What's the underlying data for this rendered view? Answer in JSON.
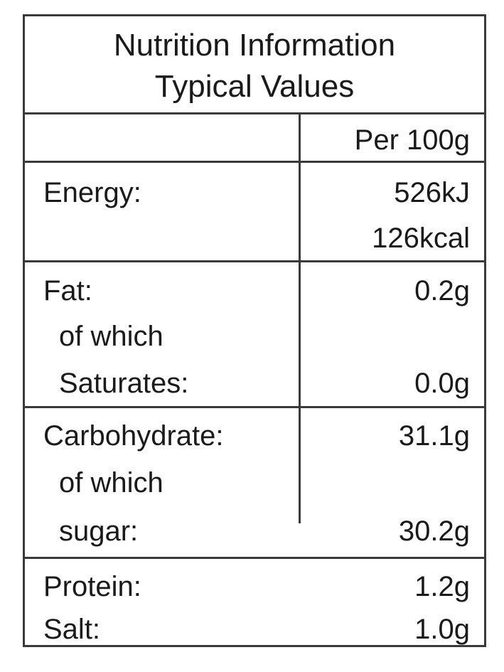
{
  "header": {
    "title_line1": "Nutrition Information",
    "title_line2": "Typical Values"
  },
  "column_header": "Per 100g",
  "rows": {
    "energy": {
      "label": "Energy:",
      "kj": "526kJ",
      "kcal": "126kcal"
    },
    "fat": {
      "label": "Fat:",
      "value": "0.2g",
      "sub_prefix": "of which",
      "sub_label": "Saturates:",
      "sub_value": "0.0g"
    },
    "carbohydrate": {
      "label": "Carbohydrate:",
      "value": "31.1g",
      "sub_prefix": "of which",
      "sub_label": "sugar:",
      "sub_value": "30.2g"
    },
    "protein": {
      "label": "Protein:",
      "value": "1.2g"
    },
    "salt": {
      "label": "Salt:",
      "value": "1.0g"
    }
  }
}
